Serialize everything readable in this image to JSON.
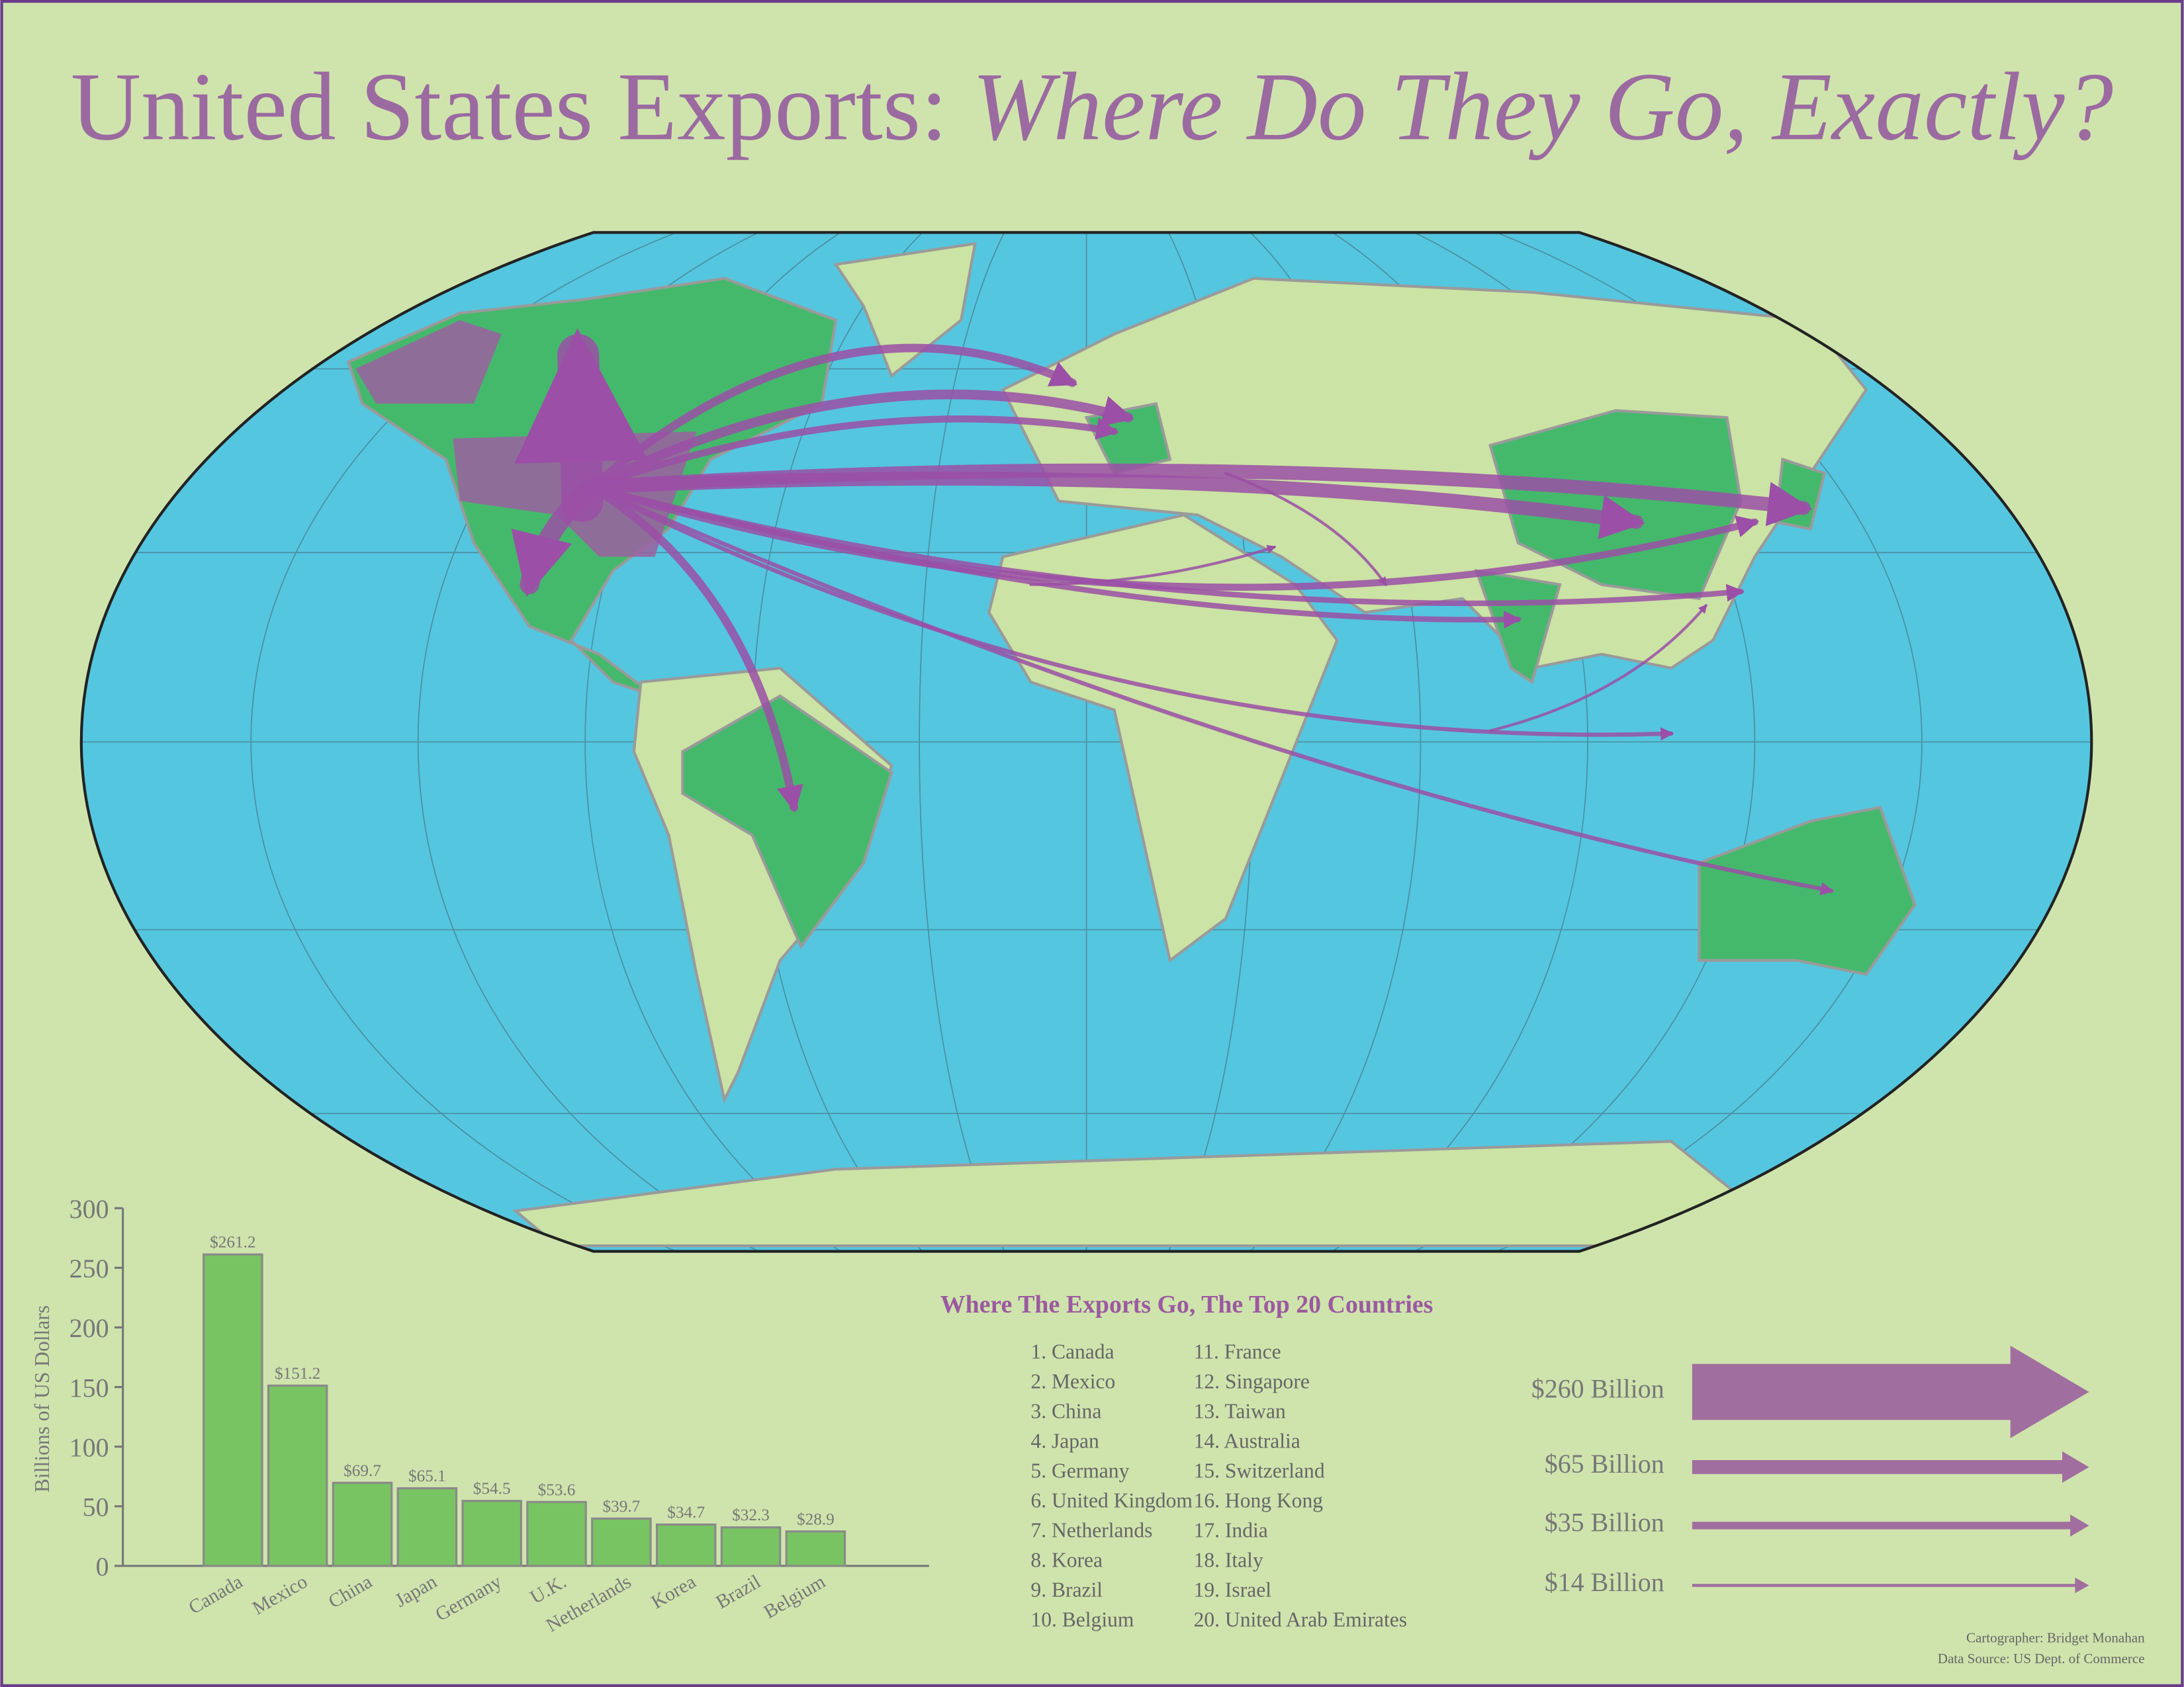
{
  "title": {
    "main": "United States Exports:",
    "italic": "Where Do They Go, Exactly?"
  },
  "chart_data": {
    "type": "bar",
    "y_label": "Billions of US Dollars",
    "categories": [
      "Canada",
      "Mexico",
      "China",
      "Japan",
      "Germany",
      "U.K.",
      "Netherlands",
      "Korea",
      "Brazil",
      "Belgium"
    ],
    "values": [
      261.2,
      151.2,
      69.7,
      65.1,
      54.5,
      53.6,
      39.7,
      34.7,
      32.3,
      28.9
    ],
    "value_labels": [
      "$261.2",
      "$151.2",
      "$69.7",
      "$65.1",
      "$54.5",
      "$53.6",
      "$39.7",
      "$34.7",
      "$32.3",
      "$28.9"
    ],
    "color": "#78c462",
    "ylim": [
      0,
      300
    ],
    "yticks": [
      0,
      50,
      100,
      150,
      200,
      250,
      300
    ]
  },
  "top20": {
    "title": "Where The Exports Go, The Top 20 Countries",
    "items": [
      "1. Canada",
      "2. Mexico",
      "3. China",
      "4. Japan",
      "5. Germany",
      "6. United Kingdom",
      "7. Netherlands",
      "8. Korea",
      "9. Brazil",
      "10. Belgium",
      "11. France",
      "12. Singapore",
      "13. Taiwan",
      "14. Australia",
      "15. Switzerland",
      "16. Hong Kong",
      "17. India",
      "18. Italy",
      "19. Israel",
      "20. United Arab Emirates"
    ]
  },
  "legend": {
    "color": "#a16f9f",
    "items": [
      {
        "label": "$260 Billion",
        "value": 260
      },
      {
        "label": "$65 Billion",
        "value": 65
      },
      {
        "label": "$35 Billion",
        "value": 35
      },
      {
        "label": "$14 Billion",
        "value": 14
      }
    ]
  },
  "credits": [
    "Cartographer:  Bridget Monahan",
    "Data Source: US Dept. of Commerce"
  ]
}
